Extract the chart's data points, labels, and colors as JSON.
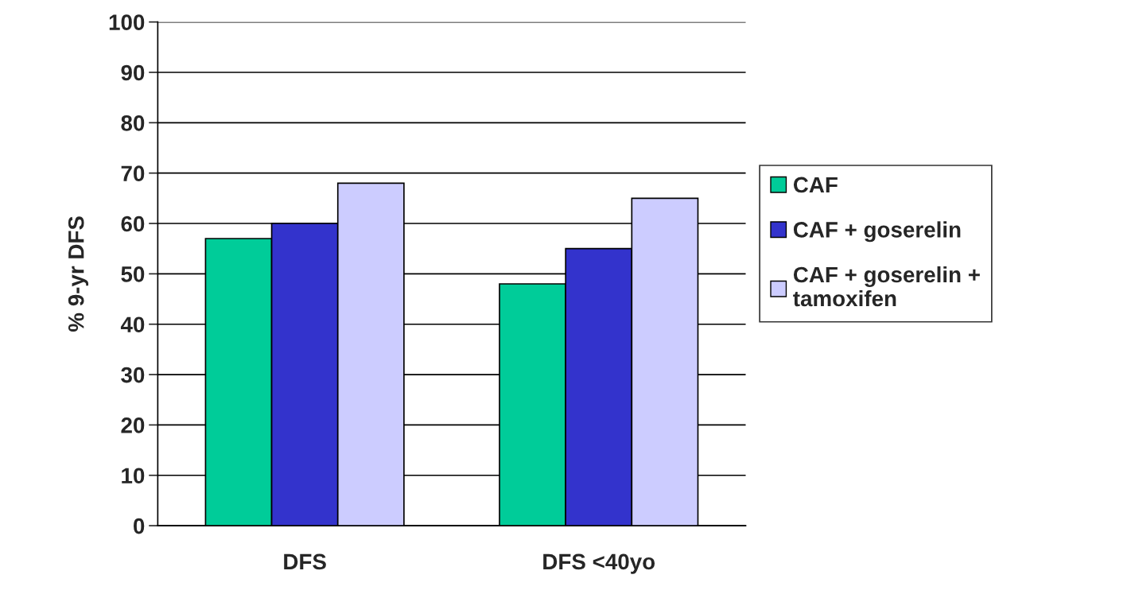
{
  "chart_data": {
    "type": "bar",
    "ylabel": "% 9-yr DFS",
    "categories": [
      "DFS",
      "DFS <40yo"
    ],
    "series": [
      {
        "name": "CAF",
        "color": "#00cc99",
        "values": [
          57,
          48
        ]
      },
      {
        "name": "CAF + goserelin",
        "color": "#3333cc",
        "values": [
          60,
          55
        ]
      },
      {
        "name": "CAF + goserelin +\ntamoxifen",
        "color": "#ccccff",
        "values": [
          68,
          65
        ]
      }
    ],
    "ylim": [
      0,
      100
    ],
    "yticks": [
      0,
      10,
      20,
      30,
      40,
      50,
      60,
      70,
      80,
      90,
      100
    ],
    "grid": "y",
    "legend": "right"
  }
}
